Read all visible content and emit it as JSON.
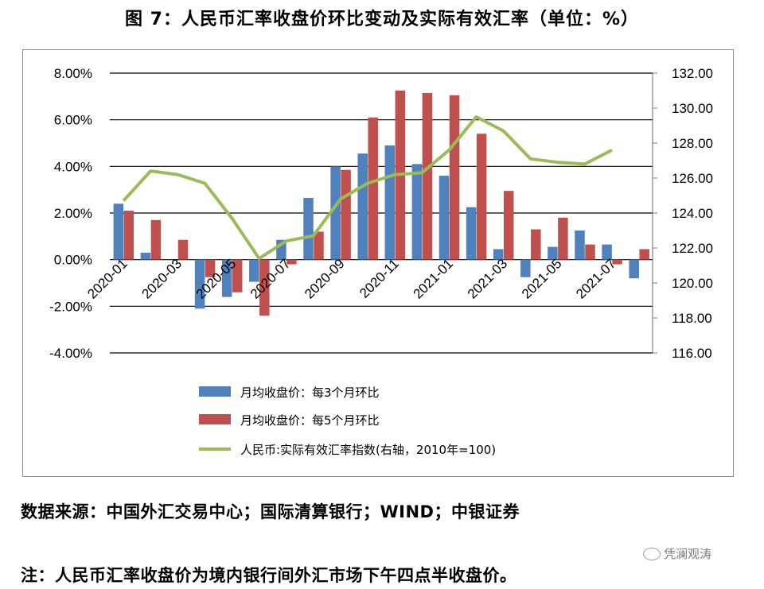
{
  "title": "图 7：人民币汇率收盘价环比变动及实际有效汇率（单位：%）",
  "source_text": "数据来源：中国外汇交易中心；国际清算银行；WIND；中银证券",
  "note_text": "注：人民币汇率收盘价为境内银行间外汇市场下午四点半收盘价。",
  "watermark": "凭澜观涛",
  "colors": {
    "blue": "#4f81bd",
    "red": "#c0504d",
    "green": "#9bbb59",
    "axis": "#7f7f7f"
  },
  "chart_data": {
    "type": "bar",
    "left_axis": {
      "ylim": [
        -0.04,
        0.08
      ],
      "ticks": [
        "-4.00%",
        "-2.00%",
        "0.00%",
        "2.00%",
        "4.00%",
        "6.00%",
        "8.00%"
      ]
    },
    "right_axis": {
      "ylim": [
        116,
        132
      ],
      "ticks": [
        "116.00",
        "118.00",
        "120.00",
        "122.00",
        "124.00",
        "126.00",
        "128.00",
        "130.00",
        "132.00"
      ]
    },
    "x_tick_labels": [
      "2020-01",
      "2020-03",
      "2020-05",
      "2020-07",
      "2020-09",
      "2020-11",
      "2021-01",
      "2021-03",
      "2021-05",
      "2021-07"
    ],
    "categories": [
      "2020-01",
      "2020-02",
      "2020-03",
      "2020-04",
      "2020-05",
      "2020-06",
      "2020-07",
      "2020-08",
      "2020-09",
      "2020-10",
      "2020-11",
      "2020-12",
      "2021-01",
      "2021-02",
      "2021-03",
      "2021-04",
      "2021-05",
      "2021-06",
      "2021-07",
      "2021-08"
    ],
    "series": [
      {
        "name": "月均收盘价：每3个月环比",
        "kind": "bar",
        "axis": "left",
        "values": [
          0.024,
          0.003,
          null,
          -0.021,
          -0.016,
          -0.0095,
          0.0085,
          0.0265,
          0.04,
          0.0455,
          0.049,
          0.041,
          0.036,
          0.0225,
          0.0045,
          -0.0075,
          0.0055,
          0.0125,
          0.0065,
          -0.008
        ]
      },
      {
        "name": "月均收盘价：每5个月环比",
        "kind": "bar",
        "axis": "left",
        "values": [
          0.021,
          0.017,
          0.0085,
          -0.0075,
          -0.014,
          -0.024,
          -0.002,
          0.012,
          0.0385,
          0.061,
          0.0725,
          0.0715,
          0.0705,
          0.054,
          0.0295,
          0.013,
          0.018,
          0.0065,
          -0.002,
          0.0045
        ]
      },
      {
        "name": "人民币:实际有效汇率指数(右轴，2010年=100)",
        "kind": "line",
        "axis": "right",
        "values": [
          124.7,
          126.4,
          126.2,
          125.7,
          123.7,
          121.4,
          122.4,
          122.7,
          124.8,
          125.7,
          126.2,
          126.3,
          127.6,
          129.5,
          128.7,
          127.1,
          126.9,
          126.8,
          127.6,
          null
        ]
      }
    ]
  }
}
